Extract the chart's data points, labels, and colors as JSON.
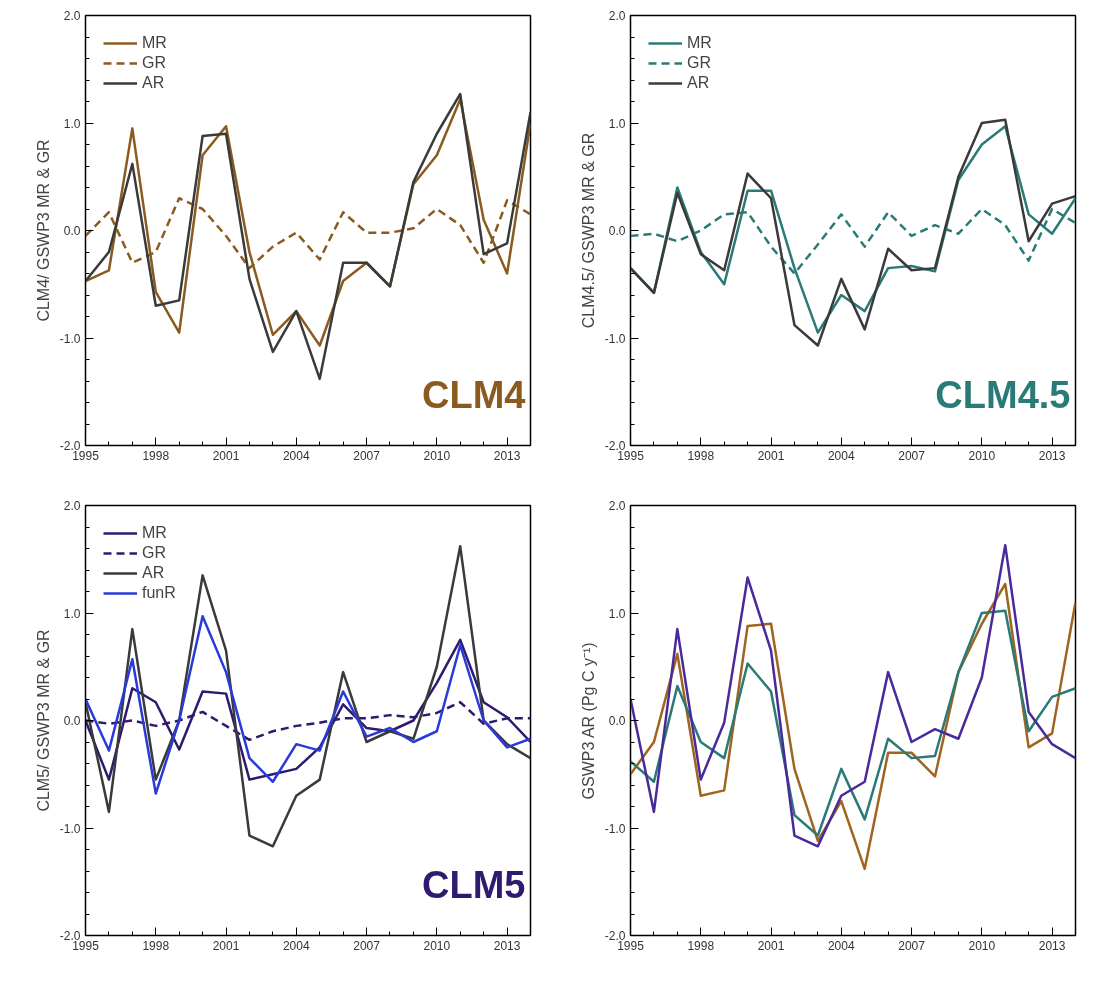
{
  "chart_data": [
    {
      "type": "line",
      "ylabel": "CLM4/ GSWP3 MR & GR",
      "annotations": [
        "CLM4"
      ],
      "x": [
        1995,
        1996,
        1997,
        1998,
        1999,
        2000,
        2001,
        2002,
        2003,
        2004,
        2005,
        2006,
        2007,
        2008,
        2009,
        2010,
        2011,
        2012,
        2013,
        2014
      ],
      "xlim": [
        1995,
        2014
      ],
      "xticks": [
        1995,
        1998,
        2001,
        2004,
        2007,
        2010,
        2013
      ],
      "ylim": [
        -2,
        2
      ],
      "yticks": [
        {
          "value": -2,
          "label": "-2.0"
        },
        {
          "value": -1,
          "label": "-1.0"
        },
        {
          "value": 0,
          "label": "0.0"
        },
        {
          "value": 1,
          "label": "1.0"
        },
        {
          "value": 2,
          "label": "2.0"
        }
      ],
      "grid": false,
      "legend": "top left",
      "series": [
        {
          "name": "MR",
          "color": "#8b5a1e",
          "values": [
            -0.47,
            -0.37,
            0.95,
            -0.57,
            -0.95,
            0.7,
            0.97,
            -0.2,
            -0.97,
            -0.75,
            -1.07,
            -0.47,
            -0.3,
            -0.52,
            0.43,
            0.7,
            1.22,
            0.1,
            -0.4,
            1.0
          ]
        },
        {
          "name": "GR",
          "color": "#8b5a1e",
          "line_style": "dashed",
          "values": [
            -0.05,
            0.17,
            -0.3,
            -0.2,
            0.3,
            0.2,
            -0.05,
            -0.35,
            -0.15,
            -0.02,
            -0.27,
            0.17,
            -0.02,
            -0.02,
            0.02,
            0.2,
            0.05,
            -0.3,
            0.28,
            0.15
          ]
        },
        {
          "name": "AR",
          "color": "#3a3a3a",
          "values": [
            -0.47,
            -0.2,
            0.62,
            -0.7,
            -0.65,
            0.88,
            0.9,
            -0.45,
            -1.13,
            -0.75,
            -1.38,
            -0.3,
            -0.3,
            -0.52,
            0.45,
            0.9,
            1.27,
            -0.22,
            -0.12,
            1.1
          ]
        }
      ]
    },
    {
      "type": "line",
      "ylabel": "CLM4.5/ GSWP3 MR & GR",
      "annotations": [
        "CLM4.5"
      ],
      "x": [
        1995,
        1996,
        1997,
        1998,
        1999,
        2000,
        2001,
        2002,
        2003,
        2004,
        2005,
        2006,
        2007,
        2008,
        2009,
        2010,
        2011,
        2012,
        2013,
        2014
      ],
      "xlim": [
        1995,
        2014
      ],
      "xticks": [
        1995,
        1998,
        2001,
        2004,
        2007,
        2010,
        2013
      ],
      "ylim": [
        -2,
        2
      ],
      "yticks": [
        {
          "value": -2,
          "label": "-2.0"
        },
        {
          "value": -1,
          "label": "-1.0"
        },
        {
          "value": 0,
          "label": "0.0"
        },
        {
          "value": 1,
          "label": "1.0"
        },
        {
          "value": 2,
          "label": "2.0"
        }
      ],
      "grid": false,
      "legend": "top left",
      "series": [
        {
          "name": "MR",
          "color": "#2a7a78",
          "values": [
            -0.35,
            -0.58,
            0.4,
            -0.2,
            -0.5,
            0.37,
            0.37,
            -0.35,
            -0.95,
            -0.6,
            -0.75,
            -0.35,
            -0.33,
            -0.38,
            0.47,
            0.8,
            0.97,
            0.15,
            -0.03,
            0.3
          ]
        },
        {
          "name": "GR",
          "color": "#2a7a78",
          "line_style": "dashed",
          "values": [
            -0.05,
            -0.03,
            -0.1,
            0.0,
            0.15,
            0.17,
            -0.15,
            -0.4,
            -0.13,
            0.15,
            -0.15,
            0.17,
            -0.05,
            0.05,
            -0.03,
            0.2,
            0.05,
            -0.28,
            0.2,
            0.07
          ]
        },
        {
          "name": "AR",
          "color": "#3a3a3a",
          "values": [
            -0.35,
            -0.58,
            0.35,
            -0.22,
            -0.37,
            0.53,
            0.3,
            -0.88,
            -1.07,
            -0.45,
            -0.92,
            -0.17,
            -0.37,
            -0.35,
            0.5,
            1.0,
            1.03,
            -0.1,
            0.25,
            0.32
          ]
        }
      ]
    },
    {
      "type": "line",
      "ylabel": "CLM5/ GSWP3 MR & GR",
      "annotations": [
        "CLM5"
      ],
      "x": [
        1995,
        1996,
        1997,
        1998,
        1999,
        2000,
        2001,
        2002,
        2003,
        2004,
        2005,
        2006,
        2007,
        2008,
        2009,
        2010,
        2011,
        2012,
        2013,
        2014
      ],
      "xlim": [
        1995,
        2014
      ],
      "xticks": [
        1995,
        1998,
        2001,
        2004,
        2007,
        2010,
        2013
      ],
      "ylim": [
        -2,
        2
      ],
      "yticks": [
        {
          "value": -2,
          "label": "-2.0"
        },
        {
          "value": -1,
          "label": "-1.0"
        },
        {
          "value": 0,
          "label": "0.0"
        },
        {
          "value": 1,
          "label": "1.0"
        },
        {
          "value": 2,
          "label": "2.0"
        }
      ],
      "grid": false,
      "legend": "top left",
      "series": [
        {
          "name": "MR",
          "color": "#2e1a6e",
          "values": [
            0.0,
            -0.55,
            0.3,
            0.17,
            -0.27,
            0.27,
            0.25,
            -0.55,
            -0.5,
            -0.45,
            -0.25,
            0.15,
            -0.07,
            -0.1,
            0.0,
            0.35,
            0.75,
            0.17,
            0.03,
            -0.2
          ]
        },
        {
          "name": "GR",
          "color": "#2e1a6e",
          "line_style": "dashed",
          "values": [
            0.0,
            -0.03,
            0.0,
            -0.05,
            0.0,
            0.08,
            -0.05,
            -0.18,
            -0.1,
            -0.05,
            -0.02,
            0.02,
            0.02,
            0.05,
            0.03,
            0.07,
            0.17,
            -0.03,
            0.02,
            0.02
          ]
        },
        {
          "name": "AR",
          "color": "#3a3a3a",
          "values": [
            0.17,
            -0.85,
            0.85,
            -0.55,
            0.0,
            1.35,
            0.65,
            -1.07,
            -1.17,
            -0.7,
            -0.55,
            0.45,
            -0.2,
            -0.1,
            -0.17,
            0.5,
            1.62,
            0.0,
            -0.22,
            -0.35
          ]
        },
        {
          "name": "funR",
          "color": "#2a3ad8",
          "values": [
            0.2,
            -0.28,
            0.57,
            -0.68,
            0.0,
            0.97,
            0.45,
            -0.35,
            -0.57,
            -0.22,
            -0.28,
            0.27,
            -0.15,
            -0.07,
            -0.2,
            -0.1,
            0.7,
            0.0,
            -0.25,
            -0.17
          ]
        }
      ]
    },
    {
      "type": "line",
      "ylabel": "GSWP3 AR (Pg C y⁻¹)",
      "x": [
        1995,
        1996,
        1997,
        1998,
        1999,
        2000,
        2001,
        2002,
        2003,
        2004,
        2005,
        2006,
        2007,
        2008,
        2009,
        2010,
        2011,
        2012,
        2013,
        2014
      ],
      "xlim": [
        1995,
        2014
      ],
      "xticks": [
        1995,
        1998,
        2001,
        2004,
        2007,
        2010,
        2013
      ],
      "ylim": [
        -2,
        2
      ],
      "yticks": [
        {
          "value": -2,
          "label": "-2.0"
        },
        {
          "value": -1,
          "label": "-1.0"
        },
        {
          "value": 0,
          "label": "0.0"
        },
        {
          "value": 1,
          "label": "1.0"
        },
        {
          "value": 2,
          "label": "2.0"
        }
      ],
      "grid": false,
      "series": [
        {
          "color": "#a0641e",
          "values": [
            -0.5,
            -0.2,
            0.62,
            -0.7,
            -0.65,
            0.88,
            0.9,
            -0.45,
            -1.12,
            -0.75,
            -1.38,
            -0.3,
            -0.3,
            -0.52,
            0.45,
            0.9,
            1.27,
            -0.25,
            -0.12,
            1.1
          ]
        },
        {
          "color": "#2a7a78",
          "values": [
            -0.38,
            -0.57,
            0.32,
            -0.2,
            -0.35,
            0.53,
            0.27,
            -0.88,
            -1.07,
            -0.45,
            -0.92,
            -0.17,
            -0.35,
            -0.33,
            0.45,
            1.0,
            1.02,
            -0.1,
            0.22,
            0.3
          ]
        },
        {
          "color": "#4a2a9a",
          "values": [
            0.2,
            -0.85,
            0.85,
            -0.55,
            -0.02,
            1.33,
            0.65,
            -1.07,
            -1.17,
            -0.7,
            -0.57,
            0.45,
            -0.2,
            -0.08,
            -0.17,
            0.4,
            1.63,
            0.08,
            -0.22,
            -0.35
          ]
        }
      ]
    }
  ]
}
